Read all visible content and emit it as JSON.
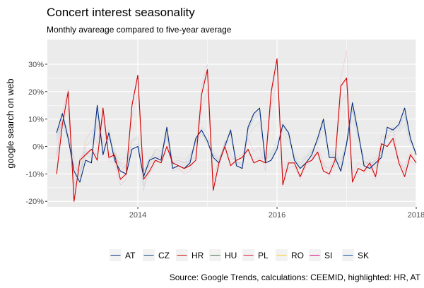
{
  "chart_data": {
    "type": "line",
    "title": "Concert interest seasonality",
    "subtitle": "Monthly avareage compared to five-year average",
    "ylabel": "google search on web",
    "xlabel": "",
    "caption": "Source: Google Trends, calculations: CEEMID, highlighted: HR, AT",
    "x_start": "2012-11",
    "x_ticks": [
      {
        "value": 2014,
        "label": "2014"
      },
      {
        "value": 2016,
        "label": "2016"
      },
      {
        "value": 2018,
        "label": "2018"
      }
    ],
    "xlim": [
      2012.7,
      2018.0
    ],
    "y_ticks": [
      {
        "value": -20,
        "label": "-20%"
      },
      {
        "value": -10,
        "label": "-10%"
      },
      {
        "value": 0,
        "label": "0%"
      },
      {
        "value": 10,
        "label": "10%"
      },
      {
        "value": 20,
        "label": "20%"
      },
      {
        "value": 30,
        "label": "30%"
      }
    ],
    "ylim": [
      -22,
      39
    ],
    "grid": true,
    "legend_position": "bottom",
    "highlighted": [
      "HR",
      "AT"
    ],
    "series": [
      {
        "name": "AT",
        "color": "#002B7F",
        "highlight": true,
        "values": [
          5,
          12,
          3,
          -9,
          -13,
          -5,
          -6,
          15,
          -3,
          5,
          -5,
          -9,
          -10,
          -1,
          0,
          -11,
          -5,
          -4,
          -5,
          7,
          -8,
          -7,
          -8,
          -6,
          3,
          6,
          2,
          -4,
          -6,
          0,
          6,
          -7,
          -8,
          7,
          12,
          14,
          -6,
          -5,
          -1,
          8,
          5,
          -5,
          -8,
          -6,
          -3,
          3,
          10,
          -4,
          -4,
          -9,
          1,
          16,
          5,
          -7,
          -8,
          -6,
          -4,
          7,
          6,
          8,
          14,
          3,
          -3
        ]
      },
      {
        "name": "CZ",
        "color": "#11457E",
        "highlight": false,
        "values": [
          4,
          10,
          2,
          -7,
          -10,
          -3,
          -4,
          11,
          -2,
          4,
          -4,
          -6,
          -7,
          0,
          1,
          -9,
          -4,
          -3,
          -4,
          5,
          -6,
          -5,
          -6,
          -4,
          2,
          5,
          1,
          -3,
          -5,
          1,
          5,
          -6,
          -6,
          6,
          10,
          12,
          -4,
          -4,
          0,
          6,
          4,
          -4,
          -6,
          -4,
          -2,
          2,
          8,
          -3,
          -3,
          -7,
          0,
          13,
          4,
          -6,
          -6,
          -5,
          -3,
          6,
          5,
          6,
          11,
          2,
          -2
        ]
      },
      {
        "name": "HR",
        "color": "#D10000",
        "highlight": true,
        "values": [
          -10,
          8,
          20,
          -20,
          -5,
          -3,
          -1,
          -5,
          14,
          -4,
          -3,
          -12,
          -10,
          15,
          26,
          -12,
          -9,
          -5,
          -6,
          0,
          -6,
          -7,
          -8,
          -7,
          -5,
          19,
          28,
          -16,
          -6,
          0,
          -7,
          -5,
          -4,
          -1,
          -6,
          -5,
          -6,
          20,
          32,
          -14,
          -6,
          -6,
          -11,
          -6,
          -5,
          -2,
          -9,
          -10,
          -5,
          22,
          25,
          -13,
          -8,
          -9,
          -6,
          -11,
          1,
          0,
          3,
          -6,
          -11,
          -3,
          -6
        ]
      },
      {
        "name": "HU",
        "color": "#477050",
        "highlight": false,
        "values": [
          2,
          7,
          3,
          -4,
          -9,
          -2,
          -3,
          8,
          0,
          3,
          -2,
          -5,
          -4,
          2,
          4,
          -12,
          -5,
          -2,
          -3,
          3,
          -4,
          -4,
          -5,
          -3,
          1,
          4,
          3,
          -2,
          -4,
          0,
          3,
          -5,
          -4,
          4,
          7,
          9,
          -3,
          -3,
          1,
          5,
          2,
          -3,
          -5,
          -3,
          -1,
          1,
          6,
          -2,
          -2,
          -5,
          1,
          10,
          3,
          -4,
          -5,
          -4,
          -2,
          4,
          4,
          5,
          8,
          1,
          -2
        ]
      },
      {
        "name": "PL",
        "color": "#DC143C",
        "highlight": false,
        "values": [
          -4,
          9,
          14,
          -14,
          -4,
          -2,
          -1,
          -3,
          10,
          -3,
          -2,
          -9,
          -7,
          11,
          19,
          -9,
          -7,
          -4,
          -5,
          0,
          -5,
          -5,
          -6,
          -5,
          -4,
          14,
          21,
          -12,
          -5,
          0,
          -5,
          -4,
          -3,
          -1,
          -5,
          -4,
          -4,
          15,
          24,
          -10,
          -5,
          -5,
          -8,
          -5,
          -4,
          -2,
          -7,
          -8,
          -4,
          16,
          19,
          -10,
          -6,
          -7,
          -5,
          -8,
          1,
          0,
          2,
          -5,
          -8,
          -2,
          -5
        ]
      },
      {
        "name": "RO",
        "color": "#FCD116",
        "highlight": false,
        "values": [
          6,
          14,
          11,
          -10,
          -14,
          5,
          9,
          12,
          2,
          7,
          0,
          -10,
          -8,
          4,
          12,
          -11,
          -7,
          -2,
          0,
          9,
          -7,
          -8,
          -9,
          -6,
          4,
          15,
          17,
          -9,
          -7,
          3,
          7,
          -6,
          -9,
          8,
          14,
          15,
          -7,
          2,
          8,
          9,
          7,
          -4,
          -10,
          -5,
          -1,
          5,
          12,
          -5,
          -3,
          6,
          16,
          20,
          7,
          -9,
          -10,
          -4,
          -2,
          9,
          8,
          9,
          13,
          4,
          -5
        ]
      },
      {
        "name": "SI",
        "color": "#D50080",
        "highlight": false,
        "values": [
          -3,
          12,
          21,
          -16,
          -8,
          2,
          6,
          1,
          12,
          -5,
          -6,
          -14,
          -12,
          16,
          24,
          -14,
          -10,
          -6,
          -3,
          4,
          -9,
          -8,
          -10,
          -9,
          -3,
          22,
          30,
          -13,
          -8,
          2,
          -3,
          -6,
          -7,
          3,
          -2,
          0,
          -9,
          19,
          29,
          -11,
          -8,
          -7,
          -12,
          -7,
          -5,
          0,
          -6,
          -11,
          -7,
          25,
          35,
          -11,
          -10,
          -10,
          -7,
          -12,
          4,
          3,
          7,
          -5,
          -9,
          -5,
          -7
        ]
      },
      {
        "name": "SK",
        "color": "#0B4EA2",
        "highlight": false,
        "values": [
          3,
          9,
          5,
          -6,
          -11,
          0,
          2,
          13,
          1,
          6,
          -3,
          -7,
          -8,
          2,
          3,
          -16,
          -6,
          -1,
          -2,
          6,
          -6,
          -6,
          -7,
          -5,
          2,
          7,
          5,
          -3,
          -5,
          1,
          5,
          -5,
          -7,
          6,
          11,
          13,
          -5,
          -2,
          2,
          7,
          5,
          -4,
          -7,
          -4,
          -2,
          3,
          9,
          -3,
          -3,
          -6,
          2,
          14,
          5,
          -5,
          -7,
          -5,
          -3,
          6,
          6,
          7,
          12,
          3,
          -3
        ]
      }
    ]
  }
}
